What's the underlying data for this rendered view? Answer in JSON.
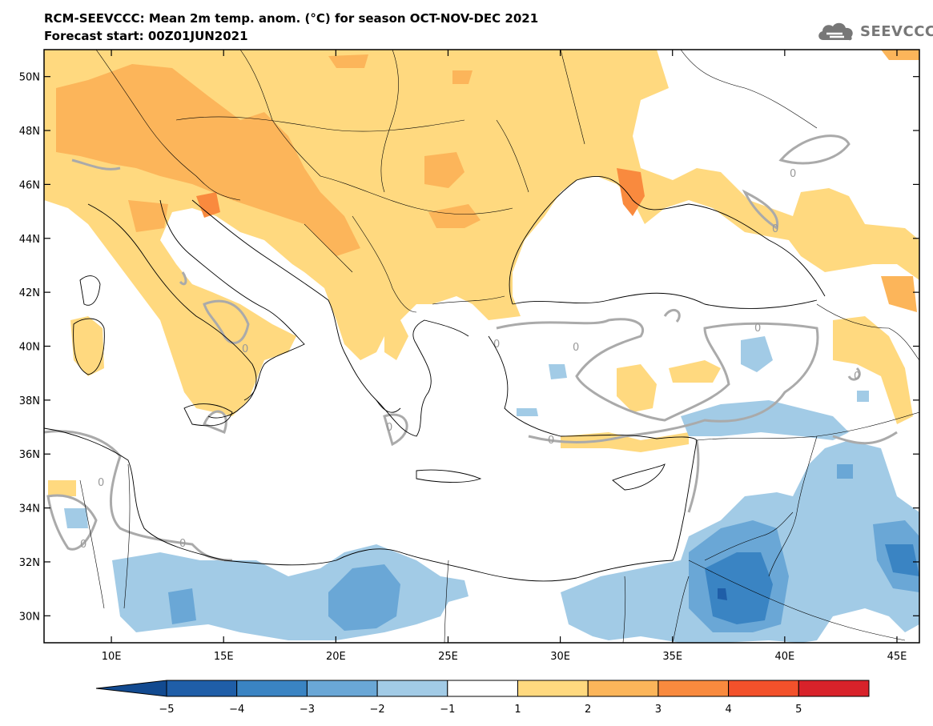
{
  "header": {
    "title": "RCM-SEEVCCC: Mean 2m temp. anom. (°C) for season OCT-NOV-DEC 2021",
    "subtitle": "Forecast start: 00Z01JUN2021",
    "logo_text": "SEEVCCC",
    "logo_icon": "cloud-icon"
  },
  "map": {
    "lon_range": [
      7,
      46
    ],
    "lat_range": [
      29,
      51
    ],
    "x_ticks": [
      "10E",
      "15E",
      "20E",
      "25E",
      "30E",
      "35E",
      "40E",
      "45E"
    ],
    "x_tick_values": [
      10,
      15,
      20,
      25,
      30,
      35,
      40,
      45
    ],
    "y_ticks": [
      "50N",
      "48N",
      "46N",
      "44N",
      "42N",
      "40N",
      "38N",
      "36N",
      "34N",
      "32N",
      "30N"
    ],
    "y_tick_values": [
      50,
      48,
      46,
      44,
      42,
      40,
      38,
      36,
      34,
      32,
      30
    ],
    "contour_label": "0"
  },
  "colorbar": {
    "labels": [
      "−5",
      "−4",
      "−3",
      "−2",
      "−1",
      "1",
      "2",
      "3",
      "4",
      "5"
    ],
    "colors": [
      "#1f5ea8",
      "#3a84c3",
      "#6aa7d6",
      "#a2cbe6",
      "#ffffff",
      "#ffd97f",
      "#fcb55a",
      "#f98a3e",
      "#f3512b",
      "#d8222a"
    ],
    "arrow_low_color": "#124a90",
    "arrow_high_color": "#d8222a"
  }
}
